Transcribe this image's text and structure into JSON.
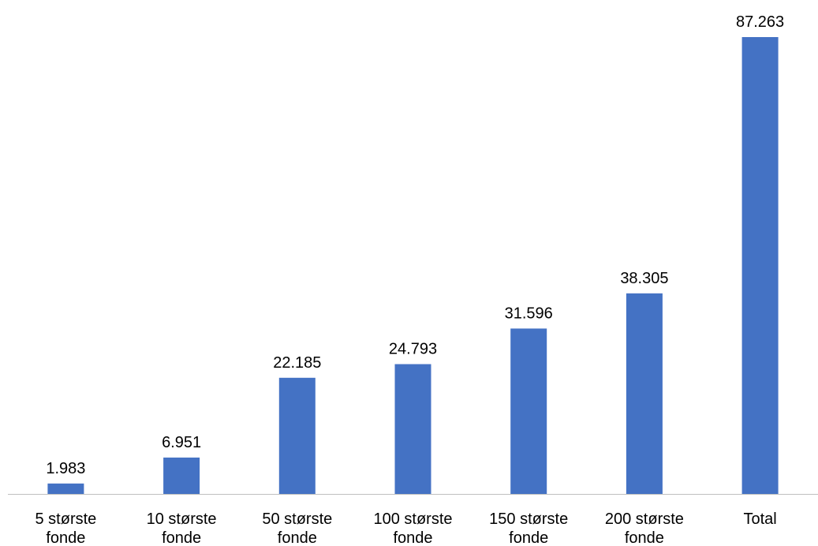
{
  "chart_data": {
    "type": "bar",
    "title": "",
    "xlabel": "",
    "ylabel": "",
    "categories": [
      [
        "5 største",
        "fonde"
      ],
      [
        "10 største",
        "fonde"
      ],
      [
        "50 største",
        "fonde"
      ],
      [
        "100 største",
        "fonde"
      ],
      [
        "150 største",
        "fonde"
      ],
      [
        "200 største",
        "fonde"
      ],
      [
        "Total"
      ]
    ],
    "values": [
      1983,
      6951,
      22185,
      24793,
      31596,
      38305,
      87263
    ],
    "data_labels": [
      "1.983",
      "6.951",
      "22.185",
      "24.793",
      "31.596",
      "38.305",
      "87.263"
    ],
    "ylim": [
      0,
      87263
    ],
    "grid": false,
    "legend": "none",
    "colors": {
      "bar": "#4472C4",
      "axis": "#BFBFBF",
      "text": "#000000"
    }
  }
}
